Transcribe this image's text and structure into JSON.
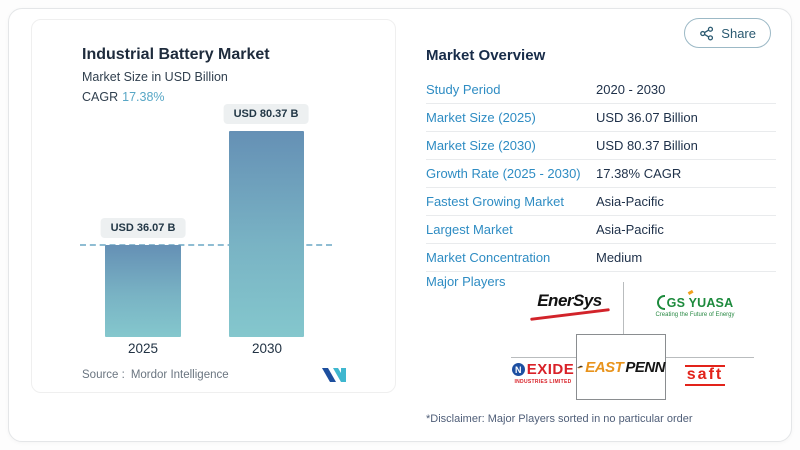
{
  "share": {
    "label": "Share"
  },
  "chart": {
    "title": "Industrial Battery Market",
    "subtitle": "Market Size in USD Billion",
    "cagr_label": "CAGR",
    "cagr_value": "17.38%",
    "source_label": "Source :",
    "source_brand": "Mordor Intelligence"
  },
  "chart_data": {
    "type": "bar",
    "categories": [
      "2025",
      "2030"
    ],
    "values": [
      36.07,
      80.37
    ],
    "value_labels": [
      "USD 36.07 B",
      "USD 80.37 B"
    ],
    "title": "Industrial Battery Market",
    "subtitle": "Market Size in USD Billion",
    "xlabel": "",
    "ylabel": "Market Size in USD Billion",
    "ylim": [
      0,
      88
    ],
    "grid": false,
    "legend": "none",
    "annotations": [
      "dashed horizontal reference line at 2025 value (36.07)"
    ],
    "bar_gradient": [
      "#6590b5",
      "#84c7cd"
    ]
  },
  "overview": {
    "heading": "Market Overview",
    "rows": [
      {
        "label": "Study Period",
        "value": "2020 - 2030"
      },
      {
        "label": "Market Size (2025)",
        "value": "USD 36.07 Billion"
      },
      {
        "label": "Market Size (2030)",
        "value": "USD 80.37 Billion"
      },
      {
        "label": "Growth Rate (2025 - 2030)",
        "value": "17.38% CAGR"
      },
      {
        "label": "Fastest Growing Market",
        "value": "Asia-Pacific"
      },
      {
        "label": "Largest Market",
        "value": "Asia-Pacific"
      },
      {
        "label": "Market Concentration",
        "value": "Medium"
      }
    ],
    "major_players": {
      "label": "Major Players",
      "enersys": {
        "name": "EnerSys"
      },
      "gsyuasa": {
        "name": "GS YUASA",
        "tagline": "Creating the Future of Energy"
      },
      "eastpenn": {
        "east": "EAST",
        "penn": "PENN"
      },
      "exide": {
        "badge_letter": "N",
        "name": "EXIDE",
        "subtitle": "INDUSTRIES LIMITED"
      },
      "saft": {
        "name": "saft"
      }
    },
    "disclaimer": "*Disclaimer: Major Players sorted in no particular order"
  },
  "colors": {
    "label_blue": "#2e8cc3",
    "navy_text": "#1e3049",
    "cagr_teal": "#58a7c6",
    "bar_top": "#6590b5",
    "bar_bottom": "#84c7cd",
    "badge_bg": "#edf0f1",
    "dashed_line": "#8fbdd3",
    "share_border": "#9cb9c6",
    "logo_red": "#d92128",
    "logo_green": "#1c8a3c",
    "logo_orange": "#e8931c",
    "mi_logo_blue": "#1d4f9e",
    "mi_logo_teal": "#3fb7cf"
  }
}
